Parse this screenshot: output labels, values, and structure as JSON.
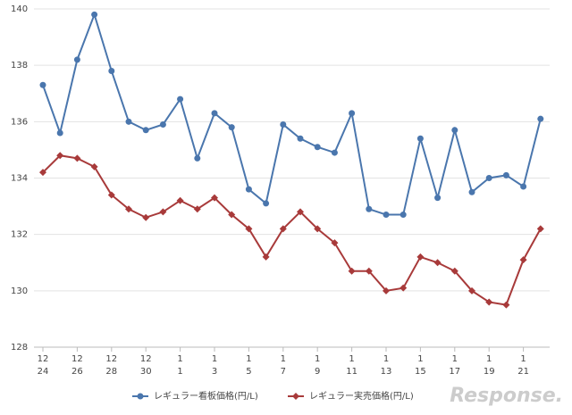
{
  "chart_data": {
    "type": "line",
    "categories": [
      [
        "12",
        "24"
      ],
      null,
      [
        "12",
        "26"
      ],
      null,
      [
        "12",
        "28"
      ],
      null,
      [
        "12",
        "30"
      ],
      null,
      [
        "1",
        "1"
      ],
      null,
      [
        "1",
        "3"
      ],
      null,
      [
        "1",
        "5"
      ],
      null,
      [
        "1",
        "7"
      ],
      null,
      [
        "1",
        "9"
      ],
      null,
      [
        "1",
        "11"
      ],
      null,
      [
        "1",
        "13"
      ],
      null,
      [
        "1",
        "15"
      ],
      null,
      [
        "1",
        "17"
      ],
      null,
      [
        "1",
        "19"
      ],
      null,
      [
        "1",
        "21"
      ],
      null
    ],
    "series": [
      {
        "name": "レギュラー看板価格(円/L)",
        "color": "#4a76ad",
        "marker": "circle",
        "values": [
          137.3,
          135.6,
          138.2,
          139.8,
          137.8,
          136.0,
          135.7,
          135.9,
          136.8,
          134.7,
          136.3,
          135.8,
          133.6,
          133.1,
          135.9,
          135.4,
          135.1,
          134.9,
          136.3,
          132.9,
          132.7,
          132.7,
          135.4,
          133.3,
          135.7,
          133.5,
          134.0,
          134.1,
          133.7,
          136.1
        ]
      },
      {
        "name": "レギュラー実売価格(円/L)",
        "color": "#a83a3a",
        "marker": "diamond",
        "values": [
          134.2,
          134.8,
          134.7,
          134.4,
          133.4,
          132.9,
          132.6,
          132.8,
          133.2,
          132.9,
          133.3,
          132.7,
          132.2,
          131.2,
          132.2,
          132.8,
          132.2,
          131.7,
          130.7,
          130.7,
          130.0,
          130.1,
          131.2,
          131.0,
          130.7,
          130.0,
          129.6,
          129.5,
          131.1,
          132.2
        ]
      }
    ],
    "ylim": [
      128,
      140
    ],
    "yticks": [
      128,
      130,
      132,
      134,
      136,
      138,
      140
    ],
    "grid": true,
    "legend": "bottom",
    "watermark": "Response."
  }
}
